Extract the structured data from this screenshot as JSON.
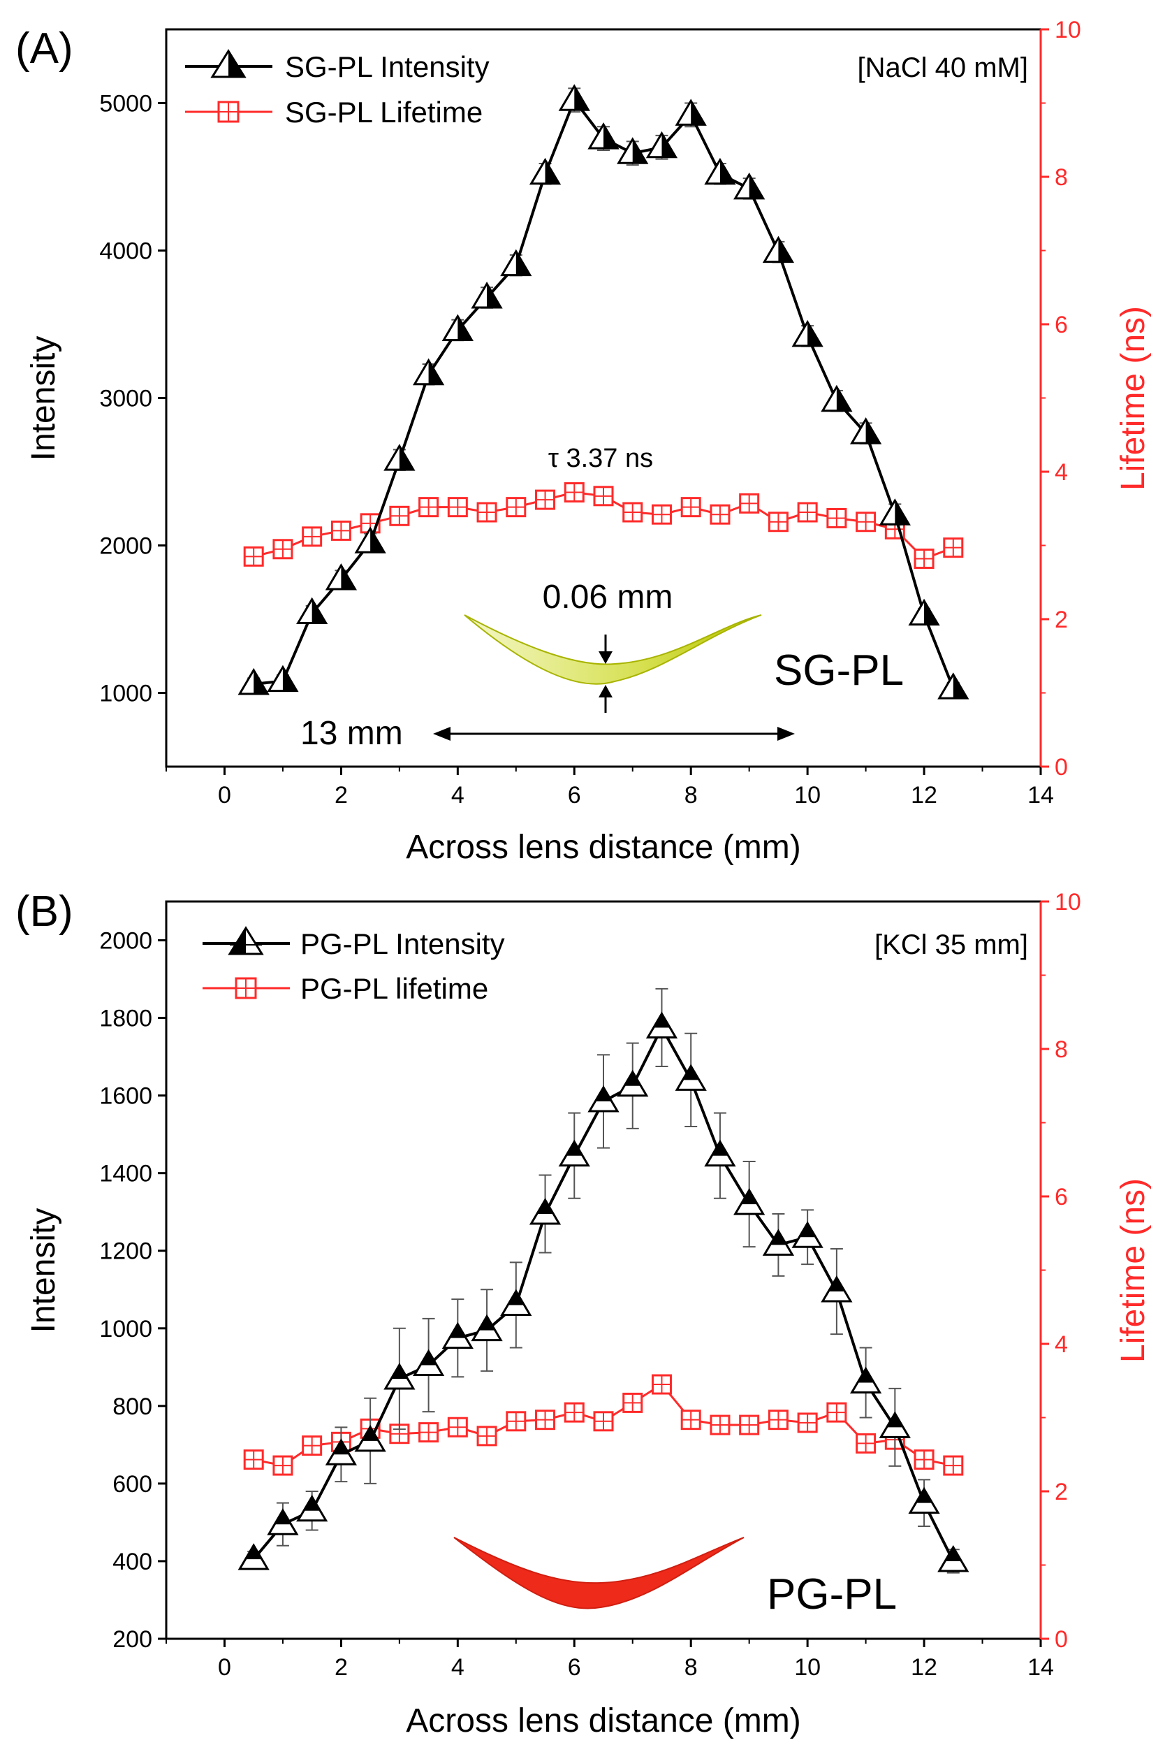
{
  "chart_data": [
    {
      "type": "line",
      "panel_label": "(A)",
      "xlabel": "Across lens distance (mm)",
      "ylabel": "Intensity",
      "y2label": "Lifetime (ns)",
      "xlim": [
        -1,
        14
      ],
      "ylim": [
        500,
        5500
      ],
      "y2lim": [
        0,
        10
      ],
      "xticks": [
        "0",
        "2",
        "4",
        "6",
        "8",
        "10",
        "12",
        "14"
      ],
      "yticks": [
        "1000",
        "2000",
        "3000",
        "4000",
        "5000"
      ],
      "y2ticks": [
        "0",
        "2",
        "4",
        "6",
        "8",
        "10"
      ],
      "condition": "[NaCl 40 mM]",
      "annotation": "τ 3.37 ns",
      "thickness_label": "0.06 mm",
      "width_label": "13 mm",
      "lens_label": "SG-PL",
      "colors": {
        "intensity": "#000000",
        "lifetime": "#ff2a2a",
        "lens": "#c8d400",
        "axis_right": "#ff2a2a"
      },
      "series": [
        {
          "name": "SG-PL Intensity",
          "axis": "left",
          "marker": "triangle",
          "x": [
            0.5,
            1,
            1.5,
            2,
            2.5,
            3,
            3.5,
            4,
            4.5,
            5,
            5.5,
            6,
            6.5,
            7,
            7.5,
            8,
            8.5,
            9,
            9.5,
            10,
            10.5,
            11,
            11.5,
            12,
            12.5
          ],
          "values": [
            1060,
            1080,
            1540,
            1770,
            2020,
            2580,
            3160,
            3460,
            3680,
            3900,
            4520,
            5020,
            4760,
            4660,
            4700,
            4920,
            4520,
            4420,
            3990,
            3420,
            2980,
            2760,
            2210,
            1530,
            1030
          ],
          "err": [
            40,
            40,
            50,
            60,
            60,
            70,
            70,
            70,
            70,
            70,
            70,
            80,
            80,
            80,
            80,
            80,
            70,
            70,
            70,
            70,
            70,
            70,
            70,
            40,
            40
          ]
        },
        {
          "name": "SG-PL Lifetime",
          "axis": "right",
          "marker": "square",
          "x": [
            0.5,
            1,
            1.5,
            2,
            2.5,
            3,
            3.5,
            4,
            4.5,
            5,
            5.5,
            6,
            6.5,
            7,
            7.5,
            8,
            8.5,
            9,
            9.5,
            10,
            10.5,
            11,
            11.5,
            12,
            12.5
          ],
          "values": [
            2.85,
            2.95,
            3.12,
            3.2,
            3.3,
            3.4,
            3.52,
            3.52,
            3.45,
            3.52,
            3.62,
            3.72,
            3.67,
            3.45,
            3.42,
            3.52,
            3.42,
            3.57,
            3.32,
            3.45,
            3.37,
            3.32,
            3.22,
            2.82,
            2.97
          ]
        }
      ]
    },
    {
      "type": "line",
      "panel_label": "(B)",
      "xlabel": "Across lens distance (mm)",
      "ylabel": "Intensity",
      "y2label": "Lifetime (ns)",
      "xlim": [
        -1,
        14
      ],
      "ylim": [
        200,
        2100
      ],
      "y2lim": [
        0,
        10
      ],
      "xticks": [
        "0",
        "2",
        "4",
        "6",
        "8",
        "10",
        "12",
        "14"
      ],
      "yticks": [
        "200",
        "400",
        "600",
        "800",
        "1000",
        "1200",
        "1400",
        "1600",
        "1800",
        "2000"
      ],
      "y2ticks": [
        "0",
        "2",
        "4",
        "6",
        "8",
        "10"
      ],
      "condition": "[KCl 35 mm]",
      "lens_label": "PG-PL",
      "colors": {
        "intensity": "#000000",
        "lifetime": "#ff2a2a",
        "lens": "#ee2a1a",
        "axis_right": "#ff2a2a"
      },
      "series": [
        {
          "name": "PG-PL Intensity",
          "axis": "left",
          "marker": "triangle",
          "x": [
            0.5,
            1,
            1.5,
            2,
            2.5,
            3,
            3.5,
            4,
            4.5,
            5,
            5.5,
            6,
            6.5,
            7,
            7.5,
            8,
            8.5,
            9,
            9.5,
            10,
            10.5,
            11,
            11.5,
            12,
            12.5
          ],
          "values": [
            405,
            495,
            530,
            675,
            710,
            870,
            905,
            975,
            995,
            1060,
            1295,
            1445,
            1585,
            1625,
            1775,
            1640,
            1445,
            1320,
            1215,
            1235,
            1095,
            860,
            745,
            550,
            400
          ],
          "err": [
            20,
            55,
            50,
            70,
            110,
            130,
            120,
            100,
            105,
            110,
            100,
            110,
            120,
            110,
            100,
            120,
            110,
            110,
            80,
            70,
            110,
            90,
            100,
            60,
            30
          ]
        },
        {
          "name": "PG-PL lifetime",
          "axis": "right",
          "marker": "square",
          "x": [
            0.5,
            1,
            1.5,
            2,
            2.5,
            3,
            3.5,
            4,
            4.5,
            5,
            5.5,
            6,
            6.5,
            7,
            7.5,
            8,
            8.5,
            9,
            9.5,
            10,
            10.5,
            11,
            11.5,
            12,
            12.5
          ],
          "values": [
            2.43,
            2.35,
            2.62,
            2.67,
            2.85,
            2.78,
            2.8,
            2.87,
            2.75,
            2.95,
            2.97,
            3.07,
            2.95,
            3.2,
            3.45,
            2.97,
            2.9,
            2.9,
            2.97,
            2.93,
            3.07,
            2.65,
            2.7,
            2.43,
            2.35
          ]
        }
      ]
    }
  ]
}
